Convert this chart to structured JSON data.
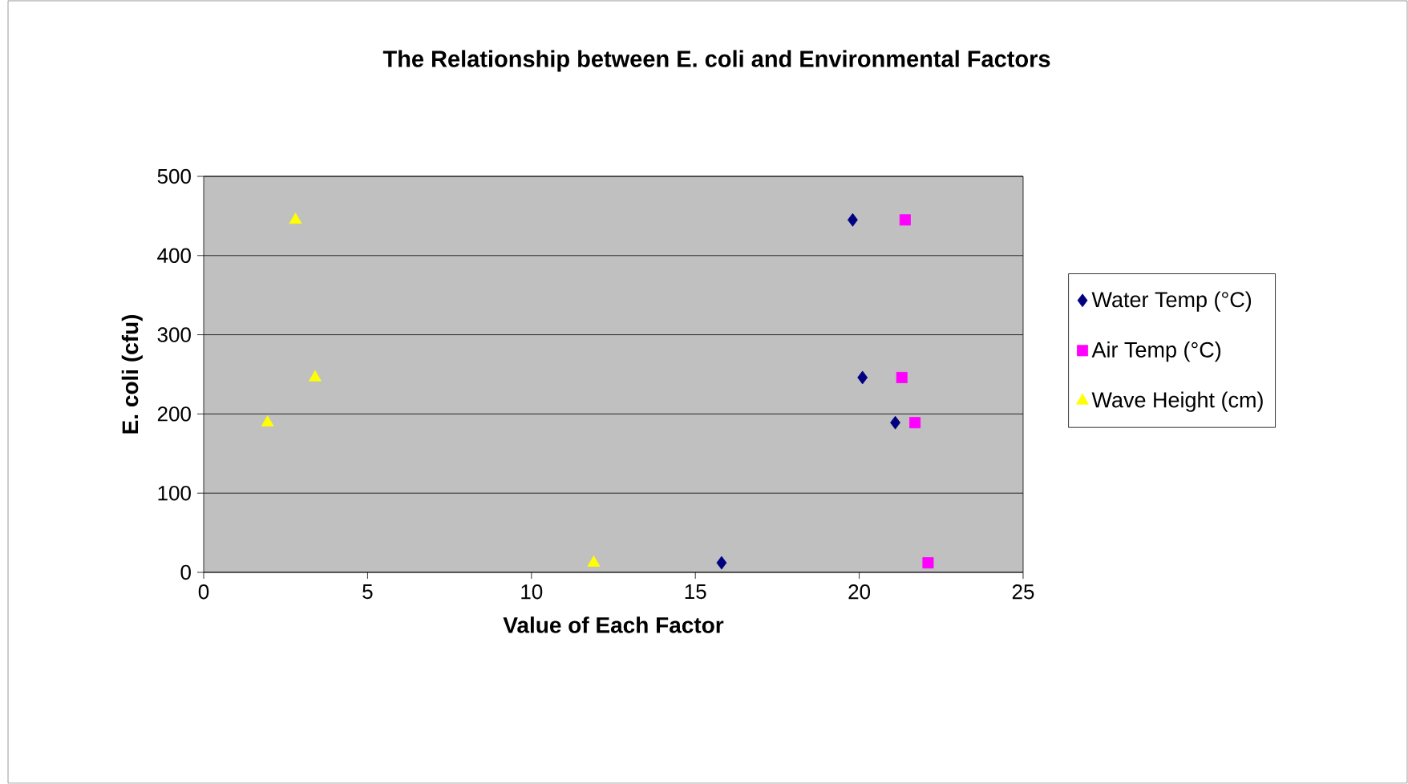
{
  "chart_data": {
    "type": "scatter",
    "title": "The Relationship between E. coli and Environmental Factors",
    "xlabel": "Value of Each Factor",
    "ylabel": "E. coli (cfu)",
    "xlim": [
      0,
      25
    ],
    "xticks": [
      0,
      5,
      10,
      15,
      20,
      25
    ],
    "ylim": [
      0,
      500
    ],
    "yticks": [
      0,
      100,
      200,
      300,
      400,
      500
    ],
    "grid": "y",
    "legend": "right",
    "series": [
      {
        "name": "Water Temp (°C)",
        "color": "#000080",
        "marker": "diamond",
        "x": [
          19.8,
          20.1,
          21.1,
          15.8
        ],
        "values": [
          445,
          246,
          189,
          12
        ]
      },
      {
        "name": "Air Temp (°C)",
        "color": "#ff00ff",
        "marker": "square",
        "x": [
          21.4,
          21.3,
          21.7,
          22.1
        ],
        "values": [
          445,
          246,
          189,
          12
        ]
      },
      {
        "name": "Wave Height (cm)",
        "color": "#ffff00",
        "marker": "triangle",
        "x": [
          2.8,
          3.4,
          1.95,
          11.9
        ],
        "values": [
          445,
          246,
          189,
          12
        ]
      }
    ]
  }
}
